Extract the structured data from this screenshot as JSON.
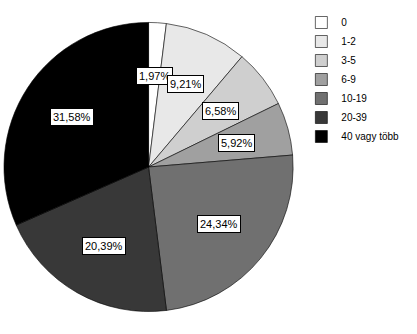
{
  "chart_data": {
    "type": "pie",
    "categories": [
      "0",
      "1-2",
      "3-5",
      "6-9",
      "10-19",
      "20-39",
      "40 vagy több"
    ],
    "values": [
      1.97,
      9.21,
      6.58,
      5.92,
      24.34,
      20.39,
      31.58
    ],
    "value_labels": [
      "1,97%",
      "9,21%",
      "6,58%",
      "5,92%",
      "24,34%",
      "20,39%",
      "31,58%"
    ],
    "colors": [
      "#ffffff",
      "#e8e8e8",
      "#cfcfcf",
      "#a0a0a0",
      "#707070",
      "#383838",
      "#000000"
    ],
    "data_labels": true,
    "legend": "right"
  }
}
